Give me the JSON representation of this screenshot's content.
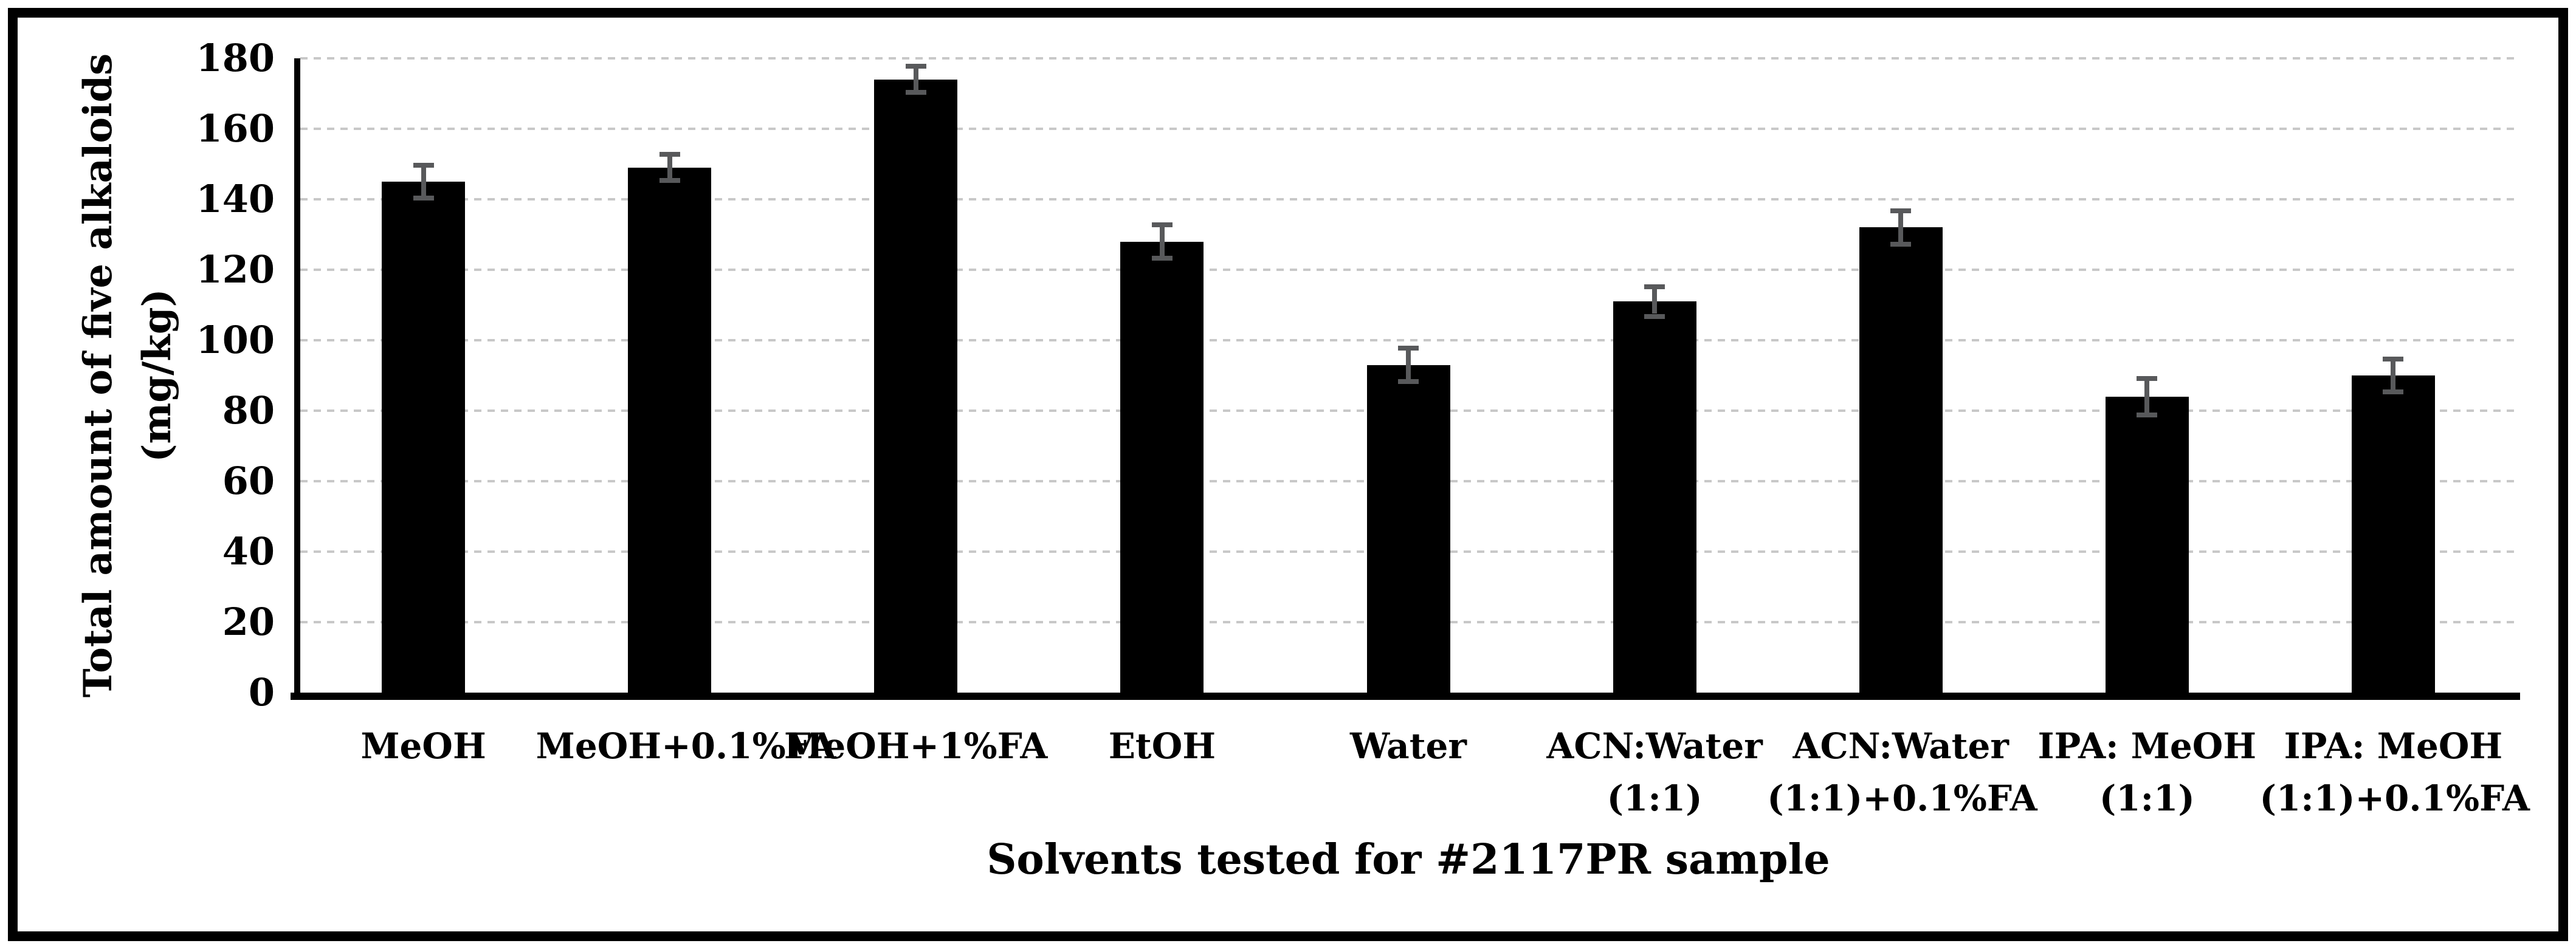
{
  "figure": {
    "background_color": "#ffffff",
    "frame_color": "#000000",
    "text_color": "#000000"
  },
  "chart_data": {
    "type": "bar",
    "title": "",
    "categories": [
      "MeOH",
      "MeOH+0.1%FA",
      "MeOH+1%FA",
      "EtOH",
      "Water",
      "ACN:Water\n(1:1)",
      "ACN:Water\n(1:1)+0.1%FA",
      "IPA: MeOH\n(1:1)",
      "IPA: MeOH\n(1:1)+0.1%FA"
    ],
    "values": [
      145,
      149,
      174,
      128,
      93,
      111,
      132,
      84,
      90
    ],
    "error_bars": [
      4,
      3,
      3,
      4,
      4,
      3.5,
      4,
      4.5,
      4
    ],
    "xlabel": "Solvents tested for #2117PR sample",
    "ylabel_line1": "Total amount of five alkaloids",
    "ylabel_line2": "(mg/kg)",
    "ylim": [
      0,
      180
    ],
    "yticks": [
      0,
      20,
      40,
      60,
      80,
      100,
      120,
      140,
      160,
      180
    ],
    "grid": "horizontal-dashed",
    "legend": "none",
    "bar_color": "#000000",
    "error_bar_color": "#58595b",
    "gridline_color": "#c8c8c8",
    "axis_color": "#000000"
  }
}
